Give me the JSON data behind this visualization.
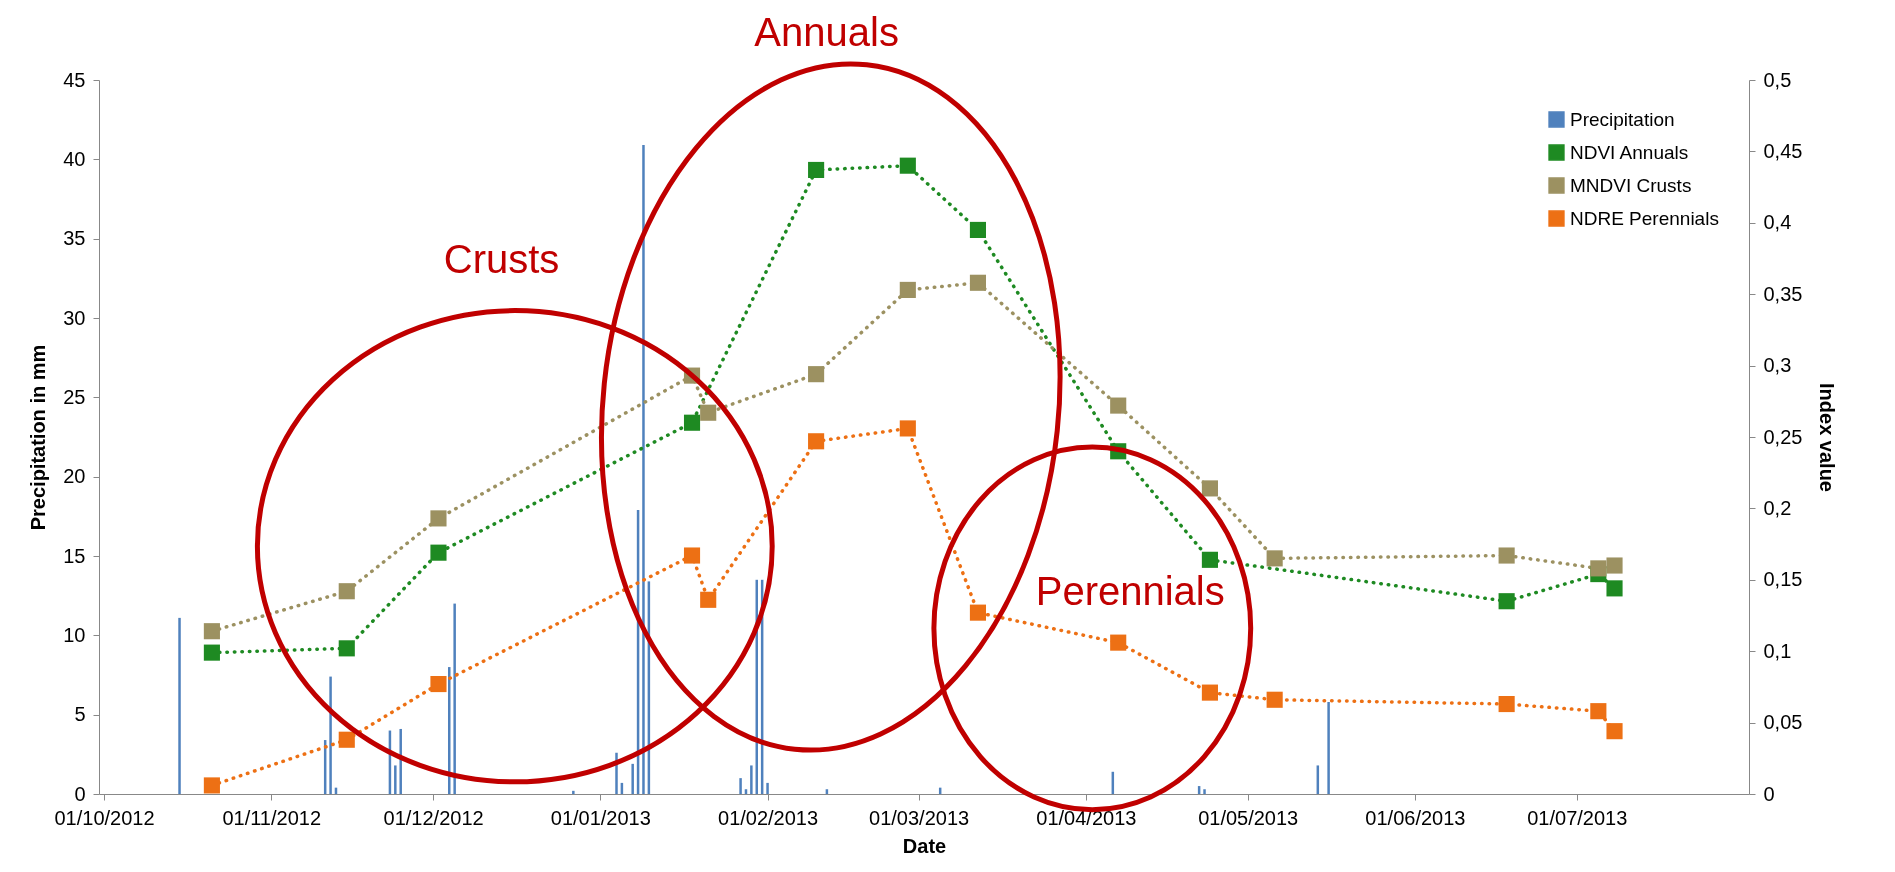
{
  "chart_data": {
    "type": "line",
    "xlabel": "Date",
    "ylabel": "Precipitation in mm",
    "y2label": "Index value",
    "xlim": [
      "2012-10-01",
      "2013-08-01"
    ],
    "xticks": [
      {
        "value": "2012-10-01",
        "label": "01/10/2012"
      },
      {
        "value": "2012-11-01",
        "label": "01/11/2012"
      },
      {
        "value": "2012-12-01",
        "label": "01/12/2012"
      },
      {
        "value": "2013-01-01",
        "label": "01/01/2013"
      },
      {
        "value": "2013-02-01",
        "label": "01/02/2013"
      },
      {
        "value": "2013-03-01",
        "label": "01/03/2013"
      },
      {
        "value": "2013-04-01",
        "label": "01/04/2013"
      },
      {
        "value": "2013-05-01",
        "label": "01/05/2013"
      },
      {
        "value": "2013-06-01",
        "label": "01/06/2013"
      },
      {
        "value": "2013-07-01",
        "label": "01/07/2013"
      }
    ],
    "ylim": [
      0,
      45
    ],
    "yticks": [
      0,
      5,
      10,
      15,
      20,
      25,
      30,
      35,
      40,
      45
    ],
    "y2lim": [
      0,
      0.5
    ],
    "y2ticks": [
      0,
      {
        "value": 0.05,
        "label": "0,05"
      },
      {
        "value": 0.1,
        "label": "0,1"
      },
      {
        "value": 0.15,
        "label": "0,15"
      },
      {
        "value": 0.2,
        "label": "0,2"
      },
      {
        "value": 0.25,
        "label": "0,25"
      },
      {
        "value": 0.3,
        "label": "0,3"
      },
      {
        "value": 0.35,
        "label": "0,35"
      },
      {
        "value": 0.4,
        "label": "0,4"
      },
      {
        "value": 0.45,
        "label": "0,45"
      },
      {
        "value": 0.5,
        "label": "0,5"
      }
    ],
    "legend": "top right",
    "marker": "square",
    "line_style": "dotted",
    "annotations": [
      "Crusts",
      "Annuals",
      "Perennials"
    ],
    "series": [
      {
        "name": "Precipitation",
        "type": "bar",
        "color": "#4f81bd",
        "x": [
          "2012-10-15",
          "2012-11-11",
          "2012-11-12",
          "2012-11-13",
          "2012-11-23",
          "2012-11-24",
          "2012-11-25",
          "2012-12-04",
          "2012-12-05",
          "2012-12-27",
          "2013-01-04",
          "2013-01-05",
          "2013-01-07",
          "2013-01-08",
          "2013-01-09",
          "2013-01-10",
          "2013-01-27",
          "2013-01-28",
          "2013-01-29",
          "2013-01-30",
          "2013-01-31",
          "2013-02-01",
          "2013-02-12",
          "2013-03-05",
          "2013-04-06",
          "2013-04-22",
          "2013-04-23",
          "2013-05-14",
          "2013-05-16"
        ],
        "values": [
          11.1,
          3.4,
          7.4,
          0.4,
          4.0,
          1.8,
          4.1,
          8.0,
          12.0,
          0.2,
          2.6,
          0.7,
          1.9,
          17.9,
          40.9,
          13.4,
          1.0,
          0.3,
          1.8,
          13.5,
          13.5,
          0.7,
          0.3,
          0.4,
          1.4,
          0.5,
          0.3,
          1.8,
          5.8
        ]
      },
      {
        "name": "NDVI Annuals",
        "axis": "y2",
        "color": "#1e8a22",
        "x": [
          "2012-10-21",
          "2012-11-15",
          "2012-12-02",
          "2013-01-18",
          "2013-02-10",
          "2013-02-27",
          "2013-03-12",
          "2013-04-07",
          "2013-04-24",
          "2013-06-18",
          "2013-07-05",
          "2013-07-08"
        ],
        "values": [
          0.099,
          0.102,
          0.169,
          0.26,
          0.437,
          0.44,
          0.395,
          0.24,
          0.164,
          0.135,
          0.154,
          0.144
        ]
      },
      {
        "name": "MNDVI Crusts",
        "axis": "y2",
        "color": "#9c9161",
        "x": [
          "2012-10-21",
          "2012-11-15",
          "2012-12-02",
          "2013-01-18",
          "2013-01-21",
          "2013-02-10",
          "2013-02-27",
          "2013-03-12",
          "2013-04-07",
          "2013-04-24",
          "2013-05-06",
          "2013-06-18",
          "2013-07-05",
          "2013-07-08"
        ],
        "values": [
          0.114,
          0.142,
          0.193,
          0.293,
          0.267,
          0.294,
          0.353,
          0.358,
          0.272,
          0.214,
          0.165,
          0.167,
          0.158,
          0.16
        ]
      },
      {
        "name": "NDRE Perennials",
        "axis": "y2",
        "color": "#ed7014",
        "x": [
          "2012-10-21",
          "2012-11-15",
          "2012-12-02",
          "2013-01-18",
          "2013-01-21",
          "2013-02-10",
          "2013-02-27",
          "2013-03-12",
          "2013-04-07",
          "2013-04-24",
          "2013-05-06",
          "2013-06-18",
          "2013-07-05",
          "2013-07-08"
        ],
        "values": [
          0.006,
          0.038,
          0.077,
          0.167,
          0.136,
          0.247,
          0.256,
          0.127,
          0.106,
          0.071,
          0.066,
          0.063,
          0.058,
          0.044
        ]
      }
    ]
  }
}
